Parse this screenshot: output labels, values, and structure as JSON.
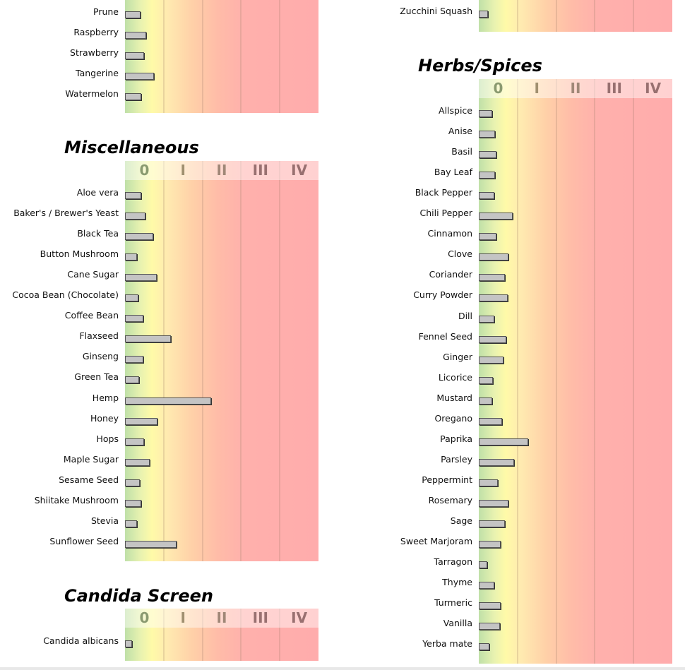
{
  "chart_data": [
    {
      "type": "bar",
      "key": "fruits",
      "title": "",
      "show_header": false,
      "categories": [
        "Prune",
        "Raspberry",
        "Strawberry",
        "Tangerine",
        "Watermelon"
      ],
      "values": [
        0.4,
        0.55,
        0.5,
        0.75,
        0.42
      ],
      "xlim": [
        0,
        5
      ],
      "class_labels": [
        "0",
        "I",
        "II",
        "III",
        "IV"
      ]
    },
    {
      "type": "bar",
      "key": "misc",
      "title": "Miscellaneous",
      "show_header": true,
      "categories": [
        "Aloe vera",
        "Baker's / Brewer's Yeast",
        "Black Tea",
        "Button Mushroom",
        "Cane Sugar",
        "Cocoa Bean (Chocolate)",
        "Coffee Bean",
        "Flaxseed",
        "Ginseng",
        "Green Tea",
        "Hemp",
        "Honey",
        "Hops",
        "Maple Sugar",
        "Sesame Seed",
        "Shiitake Mushroom",
        "Stevia",
        "Sunflower Seed"
      ],
      "values": [
        0.42,
        0.53,
        0.73,
        0.31,
        0.82,
        0.35,
        0.48,
        1.19,
        0.48,
        0.37,
        2.22,
        0.84,
        0.49,
        0.64,
        0.38,
        0.42,
        0.31,
        1.34
      ],
      "xlim": [
        0,
        5
      ],
      "class_labels": [
        "0",
        "I",
        "II",
        "III",
        "IV"
      ]
    },
    {
      "type": "bar",
      "key": "candida",
      "title": "Candida Screen",
      "show_header": true,
      "categories": [
        "Candida albicans"
      ],
      "values": [
        0.18
      ],
      "xlim": [
        0,
        5
      ],
      "class_labels": [
        "0",
        "I",
        "II",
        "III",
        "IV"
      ]
    },
    {
      "type": "bar",
      "key": "veg",
      "title": "",
      "show_header": false,
      "categories": [
        "Zucchini Squash"
      ],
      "values": [
        0.24
      ],
      "xlim": [
        0,
        5
      ],
      "class_labels": [
        "0",
        "I",
        "II",
        "III",
        "IV"
      ]
    },
    {
      "type": "bar",
      "key": "herbs",
      "title": "Herbs/Spices",
      "show_header": true,
      "categories": [
        "Allspice",
        "Anise",
        "Basil",
        "Bay Leaf",
        "Black Pepper",
        "Chili Pepper",
        "Cinnamon",
        "Clove",
        "Coriander",
        "Curry Powder",
        "Dill",
        "Fennel Seed",
        "Ginger",
        "Licorice",
        "Mustard",
        "Oregano",
        "Paprika",
        "Parsley",
        "Peppermint",
        "Rosemary",
        "Sage",
        "Sweet Marjoram",
        "Tarragon",
        "Thyme",
        "Turmeric",
        "Vanilla",
        "Yerba mate"
      ],
      "values": [
        0.35,
        0.42,
        0.46,
        0.42,
        0.4,
        0.88,
        0.46,
        0.77,
        0.68,
        0.75,
        0.4,
        0.71,
        0.64,
        0.37,
        0.35,
        0.6,
        1.28,
        0.92,
        0.49,
        0.77,
        0.68,
        0.57,
        0.22,
        0.4,
        0.57,
        0.55,
        0.27
      ],
      "xlim": [
        0,
        5
      ],
      "class_labels": [
        "0",
        "I",
        "II",
        "III",
        "IV"
      ]
    }
  ],
  "colors": {
    "header_text": [
      "#8a9a70",
      "#a09070",
      "#a08878",
      "#987070",
      "#987070"
    ],
    "bar_fill": "#c4c4c4"
  }
}
